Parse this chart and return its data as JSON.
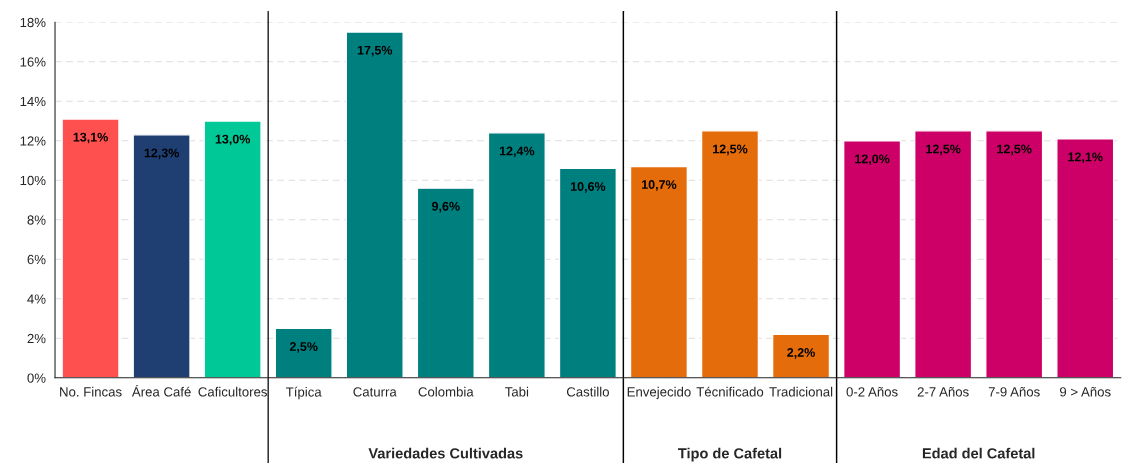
{
  "chart_data": {
    "type": "bar",
    "categories": [
      "No. Fincas",
      "Área Café",
      "Caficultores",
      "Típica",
      "Caturra",
      "Colombia",
      "Tabi",
      "Castillo",
      "Envejecido",
      "Técnificado",
      "Tradicional",
      "0-2 Años",
      "2-7 Años",
      "7-9 Años",
      "9 > Años"
    ],
    "values": [
      13.1,
      12.3,
      13.0,
      2.5,
      17.5,
      9.6,
      12.4,
      10.6,
      10.7,
      12.5,
      2.2,
      12.0,
      12.5,
      12.5,
      12.1
    ],
    "colors": [
      "#ff5050",
      "#1f3f73",
      "#00c896",
      "#007f7f",
      "#007f7f",
      "#007f7f",
      "#007f7f",
      "#007f7f",
      "#e46c0a",
      "#e46c0a",
      "#e46c0a",
      "#cc0066",
      "#cc0066",
      "#cc0066",
      "#cc0066"
    ],
    "value_labels": [
      "13,1%",
      "12,3%",
      "13,0%",
      "2,5%",
      "17,5%",
      "9,6%",
      "12,4%",
      "10,6%",
      "10,7%",
      "12,5%",
      "2,2%",
      "12,0%",
      "12,5%",
      "12,5%",
      "12,1%"
    ],
    "ylim": [
      0,
      18
    ],
    "yticks": [
      {
        "value": 0,
        "label": "0%"
      },
      {
        "value": 2,
        "label": "2%"
      },
      {
        "value": 4,
        "label": "4%"
      },
      {
        "value": 6,
        "label": "6%"
      },
      {
        "value": 8,
        "label": "8%"
      },
      {
        "value": 10,
        "label": "10%"
      },
      {
        "value": 12,
        "label": "12%"
      },
      {
        "value": 14,
        "label": "14%"
      },
      {
        "value": 16,
        "label": "16%"
      },
      {
        "value": 18,
        "label": "18%"
      }
    ],
    "grid": "y",
    "annotations": [
      "Variedades Cultivadas",
      "Tipo de Cafetal",
      "Edad del Cafetal"
    ]
  }
}
